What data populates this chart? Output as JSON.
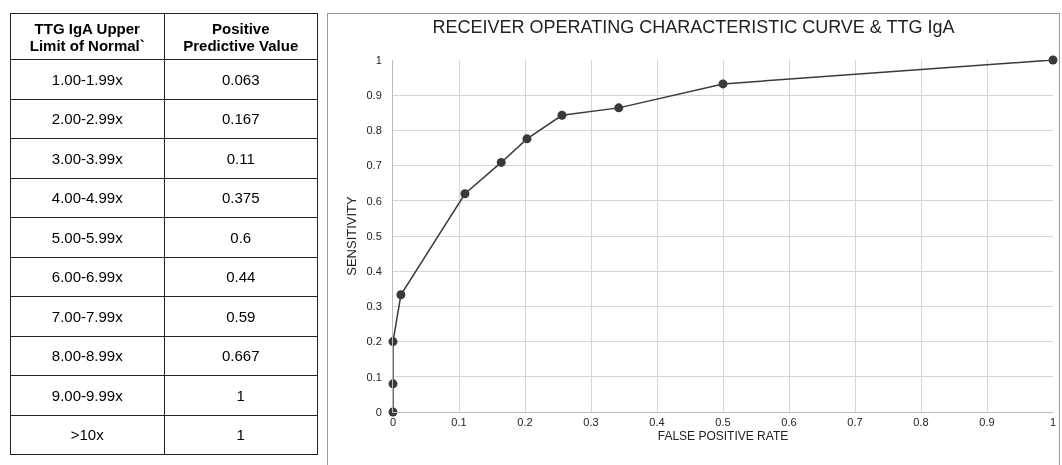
{
  "chart_data": [
    {
      "type": "other",
      "xlabel": "TTG IgA Upper Limit of Normal`",
      "ylabel": "Positive Predictive Value",
      "categories": [
        "1.00-1.99x",
        "2.00-2.99x",
        "3.00-3.99x",
        "4.00-4.99x",
        "5.00-5.99x",
        "6.00-6.99x",
        "7.00-7.99x",
        "8.00-8.99x",
        "9.00-9.99x",
        ">10x"
      ],
      "values": [
        0.063,
        0.167,
        0.11,
        0.375,
        0.6,
        0.44,
        0.59,
        0.667,
        1,
        1
      ],
      "data_labels": true
    },
    {
      "type": "line",
      "title": "RECEIVER OPERATING CHARACTERISTIC CURVE & TTG IgA",
      "xlabel": "FALSE POSITIVE RATE",
      "ylabel": "SENSITIVITY",
      "x": [
        0,
        0,
        0,
        0.012,
        0.109,
        0.164,
        0.203,
        0.256,
        0.342,
        0.5,
        1
      ],
      "values": [
        0,
        0.08,
        0.2,
        0.333,
        0.62,
        0.709,
        0.776,
        0.843,
        0.864,
        0.932,
        1
      ],
      "color": "#3a3a3a",
      "marker": "circle",
      "line_style": "solid",
      "grid": true,
      "xlim": [
        0,
        1
      ],
      "ylim": [
        0,
        1
      ],
      "xticks": [
        0,
        0.1,
        0.2,
        0.3,
        0.4,
        0.5,
        0.6,
        0.7,
        0.8,
        0.9,
        1
      ],
      "yticks": [
        0,
        0.1,
        0.2,
        0.3,
        0.4,
        0.5,
        0.6,
        0.7,
        0.8,
        0.9,
        1
      ]
    }
  ]
}
